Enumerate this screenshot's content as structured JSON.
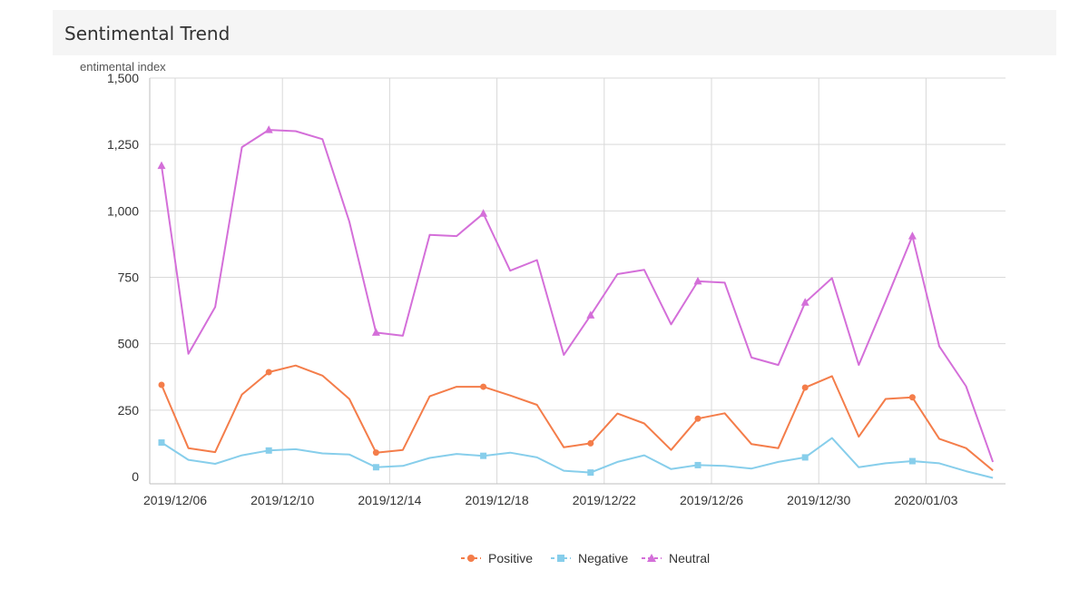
{
  "panel": {
    "title": "Sentimental Trend"
  },
  "chart_data": {
    "type": "line",
    "title": "Sentimental Trend",
    "ylabel": "entimental index",
    "xlabel": "",
    "ylim": [
      0,
      1500
    ],
    "yticks": [
      0,
      250,
      500,
      750,
      1000,
      1250,
      1500
    ],
    "ytick_labels": [
      "0",
      "250",
      "500",
      "750",
      "1,000",
      "1,250",
      "1,500"
    ],
    "x": [
      "2019/12/06",
      "2019/12/07",
      "2019/12/08",
      "2019/12/09",
      "2019/12/10",
      "2019/12/11",
      "2019/12/12",
      "2019/12/13",
      "2019/12/14",
      "2019/12/15",
      "2019/12/16",
      "2019/12/17",
      "2019/12/18",
      "2019/12/19",
      "2019/12/20",
      "2019/12/21",
      "2019/12/22",
      "2019/12/23",
      "2019/12/24",
      "2019/12/25",
      "2019/12/26",
      "2019/12/27",
      "2019/12/28",
      "2019/12/29",
      "2019/12/30",
      "2019/12/31",
      "2020/01/01",
      "2020/01/02",
      "2020/01/03",
      "2020/01/04",
      "2020/01/05",
      "2020/01/06"
    ],
    "xtick_labels": [
      {
        "index": 0,
        "label": "2019/12/06"
      },
      {
        "index": 4,
        "label": "2019/12/10"
      },
      {
        "index": 8,
        "label": "2019/12/14"
      },
      {
        "index": 12,
        "label": "2019/12/18"
      },
      {
        "index": 16,
        "label": "2019/12/22"
      },
      {
        "index": 20,
        "label": "2019/12/26"
      },
      {
        "index": 24,
        "label": "2019/12/30"
      },
      {
        "index": 28,
        "label": "2020/01/03"
      }
    ],
    "grid": true,
    "legend_position": "bottom",
    "series": [
      {
        "name": "Positive",
        "color": "#f47d4a",
        "marker": "circle",
        "values": [
          345,
          107,
          92,
          309,
          393,
          418,
          380,
          292,
          90,
          100,
          302,
          338,
          338,
          305,
          270,
          110,
          125,
          237,
          200,
          100,
          218,
          238,
          122,
          107,
          335,
          378,
          150,
          292,
          298,
          142,
          107,
          23
        ]
      },
      {
        "name": "Negative",
        "color": "#87ceeb",
        "marker": "square",
        "values": [
          128,
          63,
          48,
          80,
          98,
          103,
          87,
          83,
          35,
          40,
          70,
          85,
          78,
          90,
          72,
          22,
          15,
          55,
          80,
          28,
          43,
          40,
          30,
          55,
          72,
          145,
          35,
          50,
          58,
          50,
          20,
          -5
        ]
      },
      {
        "name": "Neutral",
        "color": "#d46fd9",
        "marker": "triangle",
        "values": [
          1170,
          462,
          638,
          1240,
          1305,
          1300,
          1270,
          960,
          542,
          530,
          910,
          905,
          990,
          775,
          815,
          458,
          607,
          762,
          778,
          573,
          735,
          730,
          448,
          420,
          655,
          747,
          420,
          660,
          905,
          490,
          340,
          55
        ]
      }
    ]
  }
}
